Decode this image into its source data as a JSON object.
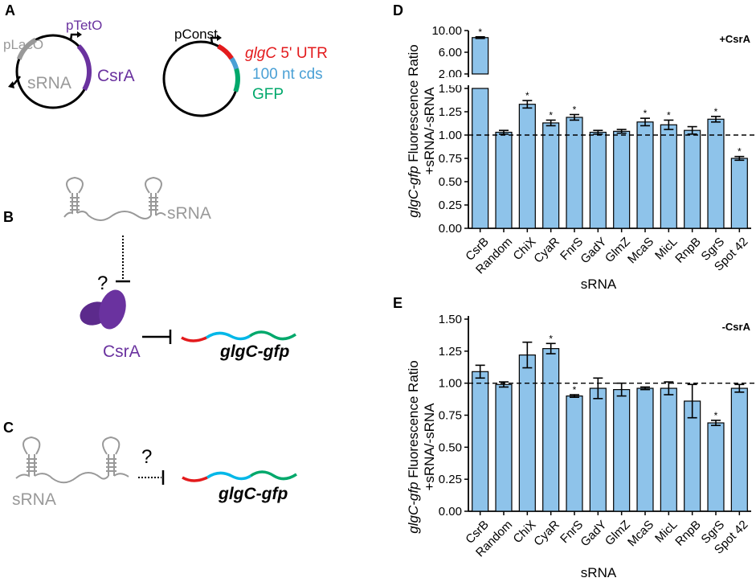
{
  "colors": {
    "csra": "#6a329f",
    "srna": "#999999",
    "utr": "#e31a1c",
    "cds": "#4aa0d5",
    "gfp": "#00a86b",
    "bar_fill": "#8ec3ea",
    "ink": "#000000"
  },
  "panel_a": {
    "label": "A",
    "plasmid1": {
      "placo": "pLacO",
      "ptet": "pTetO",
      "srna": "sRNA",
      "csra": "CsrA"
    },
    "plasmid2": {
      "pconst": "pConst.",
      "utr_gene": "glgC",
      "utr_rest": " 5' UTR",
      "cds": "100 nt cds",
      "gfp": "GFP"
    }
  },
  "panel_b": {
    "label": "B",
    "srna": "sRNA",
    "question": "?",
    "csra": "CsrA",
    "target": "glgC-gfp"
  },
  "panel_c": {
    "label": "C",
    "srna": "sRNA",
    "question": "?",
    "target": "glgC-gfp"
  },
  "chart_data": [
    {
      "panel": "D",
      "type": "bar",
      "condition": "+CsrA",
      "xlabel": "sRNA",
      "ylabel_italic": "glgC-gfp",
      "ylabel_rest": " Fluorescence Ratio",
      "ylabel_line2": "+sRNA/-sRNA",
      "categories": [
        "CsrB",
        "Random",
        "ChiX",
        "CyaR",
        "FnrS",
        "GadY",
        "GlmZ",
        "McaS",
        "MicL",
        "RnpB",
        "SgrS",
        "Spot 42"
      ],
      "values": [
        8.7,
        1.03,
        1.33,
        1.13,
        1.19,
        1.03,
        1.04,
        1.14,
        1.11,
        1.05,
        1.17,
        0.75
      ],
      "errors": [
        0.15,
        0.02,
        0.04,
        0.03,
        0.03,
        0.02,
        0.02,
        0.04,
        0.05,
        0.04,
        0.03,
        0.02
      ],
      "significant": [
        true,
        false,
        true,
        true,
        true,
        false,
        false,
        true,
        true,
        false,
        true,
        true
      ],
      "ylim_lower": [
        0,
        1.5
      ],
      "ylim_upper": [
        2,
        10
      ],
      "yticks_lower": [
        "0.00",
        "0.25",
        "0.50",
        "0.75",
        "1.00",
        "1.25",
        "1.50"
      ],
      "yticks_upper": [
        "2.00",
        "6.00",
        "10.00"
      ],
      "reference_line": 1.0
    },
    {
      "panel": "E",
      "type": "bar",
      "condition": "-CsrA",
      "xlabel": "sRNA",
      "ylabel_italic": "glgC-gfp",
      "ylabel_rest": " Fluorescence Ratio",
      "ylabel_line2": "+sRNA/-sRNA",
      "categories": [
        "CsrB",
        "Random",
        "ChiX",
        "CyaR",
        "FnrS",
        "GadY",
        "GlmZ",
        "McaS",
        "MicL",
        "RnpB",
        "SgrS",
        "Spot 42"
      ],
      "values": [
        1.09,
        0.99,
        1.22,
        1.27,
        0.9,
        0.96,
        0.95,
        0.96,
        0.96,
        0.86,
        0.69,
        0.96
      ],
      "errors": [
        0.05,
        0.02,
        0.1,
        0.04,
        0.01,
        0.08,
        0.05,
        0.01,
        0.05,
        0.13,
        0.02,
        0.03
      ],
      "significant": [
        false,
        false,
        false,
        true,
        true,
        false,
        false,
        false,
        false,
        false,
        true,
        false
      ],
      "ylim": [
        0,
        1.5
      ],
      "yticks": [
        "0.00",
        "0.25",
        "0.50",
        "0.75",
        "1.00",
        "1.25",
        "1.50"
      ],
      "reference_line": 1.0
    }
  ]
}
